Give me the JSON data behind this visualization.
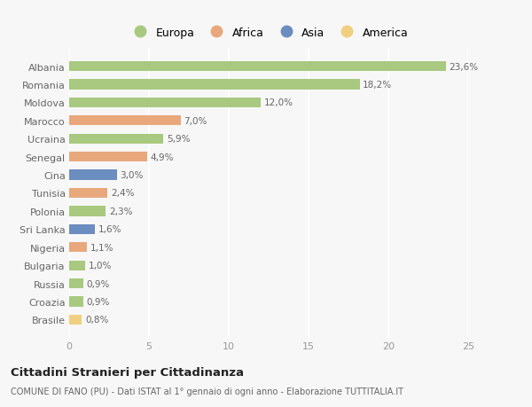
{
  "categories": [
    "Albania",
    "Romania",
    "Moldova",
    "Marocco",
    "Ucraina",
    "Senegal",
    "Cina",
    "Tunisia",
    "Polonia",
    "Sri Lanka",
    "Nigeria",
    "Bulgaria",
    "Russia",
    "Croazia",
    "Brasile"
  ],
  "values": [
    23.6,
    18.2,
    12.0,
    7.0,
    5.9,
    4.9,
    3.0,
    2.4,
    2.3,
    1.6,
    1.1,
    1.0,
    0.9,
    0.9,
    0.8
  ],
  "labels": [
    "23,6%",
    "18,2%",
    "12,0%",
    "7,0%",
    "5,9%",
    "4,9%",
    "3,0%",
    "2,4%",
    "2,3%",
    "1,6%",
    "1,1%",
    "1,0%",
    "0,9%",
    "0,9%",
    "0,8%"
  ],
  "continent": [
    "Europa",
    "Europa",
    "Europa",
    "Africa",
    "Europa",
    "Africa",
    "Asia",
    "Africa",
    "Europa",
    "Asia",
    "Africa",
    "Europa",
    "Europa",
    "Europa",
    "America"
  ],
  "colors": {
    "Europa": "#a8c97f",
    "Africa": "#e8a87c",
    "Asia": "#6b8dbf",
    "America": "#f0d080"
  },
  "legend_entries": [
    "Europa",
    "Africa",
    "Asia",
    "America"
  ],
  "xlim": [
    0,
    25
  ],
  "xticks": [
    0,
    5,
    10,
    15,
    20,
    25
  ],
  "title": "Cittadini Stranieri per Cittadinanza",
  "subtitle": "COMUNE DI FANO (PU) - Dati ISTAT al 1° gennaio di ogni anno - Elaborazione TUTTITALIA.IT",
  "bg_color": "#f7f7f7",
  "grid_color": "#ffffff",
  "bar_height": 0.55
}
